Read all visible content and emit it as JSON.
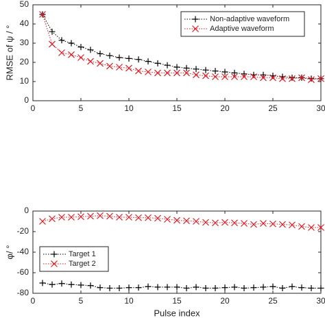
{
  "chart_data": [
    {
      "type": "line",
      "ylabel": "RMSE of ψ / °",
      "x": [
        1,
        2,
        3,
        4,
        5,
        6,
        7,
        8,
        9,
        10,
        11,
        12,
        13,
        14,
        15,
        16,
        17,
        18,
        19,
        20,
        21,
        22,
        23,
        24,
        25,
        26,
        27,
        28,
        29,
        30
      ],
      "series": [
        {
          "name": "Non-adaptive waveform",
          "color": "#000000",
          "marker": "+",
          "linestyle": "dotted",
          "values": [
            45,
            36,
            31.5,
            30,
            28,
            26.5,
            24.5,
            23.5,
            22.5,
            22,
            21.5,
            20.5,
            19.5,
            18.5,
            17.5,
            17,
            16.5,
            16,
            15.5,
            15,
            14.5,
            14,
            13.5,
            13.5,
            13,
            12.5,
            12,
            12,
            11.5,
            11.5
          ]
        },
        {
          "name": "Adaptive waveform",
          "color": "#e8141b",
          "marker": "x",
          "linestyle": "dotted",
          "values": [
            45,
            29.5,
            25,
            24,
            22.5,
            20.5,
            19.5,
            18,
            17.5,
            17,
            15.5,
            15,
            14.5,
            14.5,
            14.5,
            14.5,
            13.5,
            13,
            12.5,
            12.5,
            12.5,
            12.5,
            12.5,
            12,
            12,
            11.5,
            11.5,
            12,
            11,
            11.5
          ]
        }
      ],
      "xlim": [
        0,
        30
      ],
      "xticks": [
        0,
        5,
        10,
        15,
        20,
        25,
        30
      ],
      "ylim": [
        0,
        50
      ],
      "yticks": [
        0,
        10,
        20,
        30,
        40,
        50
      ],
      "legend": "upper right"
    },
    {
      "type": "line",
      "ylabel": "φ/ °",
      "xlabel": "Pulse index",
      "x": [
        1,
        2,
        3,
        4,
        5,
        6,
        7,
        8,
        9,
        10,
        11,
        12,
        13,
        14,
        15,
        16,
        17,
        18,
        19,
        20,
        21,
        22,
        23,
        24,
        25,
        26,
        27,
        28,
        29,
        30
      ],
      "series": [
        {
          "name": "Target 1",
          "color": "#000000",
          "marker": "+",
          "linestyle": "dotted",
          "values": [
            -70,
            -71.5,
            -70.5,
            -71.5,
            -72,
            -72.5,
            -74.5,
            -75,
            -75,
            -74.5,
            -74.5,
            -73.5,
            -74,
            -74,
            -74,
            -75,
            -74,
            -75,
            -75,
            -74.5,
            -74,
            -75,
            -74.5,
            -74,
            -73.5,
            -75,
            -73.5,
            -74.5,
            -75,
            -75
          ]
        },
        {
          "name": "Target 2",
          "color": "#e8141b",
          "marker": "x",
          "linestyle": "dotted",
          "values": [
            -10,
            -7.5,
            -6,
            -6,
            -5.5,
            -5,
            -4.5,
            -5,
            -6,
            -6,
            -6.5,
            -6.5,
            -7,
            -8,
            -9,
            -9.5,
            -10,
            -11,
            -11.5,
            -11,
            -11.5,
            -12,
            -13,
            -12,
            -12.5,
            -13,
            -13.5,
            -15,
            -16,
            -16
          ]
        }
      ],
      "xlim": [
        0,
        30
      ],
      "xticks": [
        0,
        5,
        10,
        15,
        20,
        25,
        30
      ],
      "ylim": [
        -80,
        0
      ],
      "yticks": [
        -80,
        -60,
        -40,
        -20,
        0
      ],
      "legend": "center left"
    }
  ]
}
